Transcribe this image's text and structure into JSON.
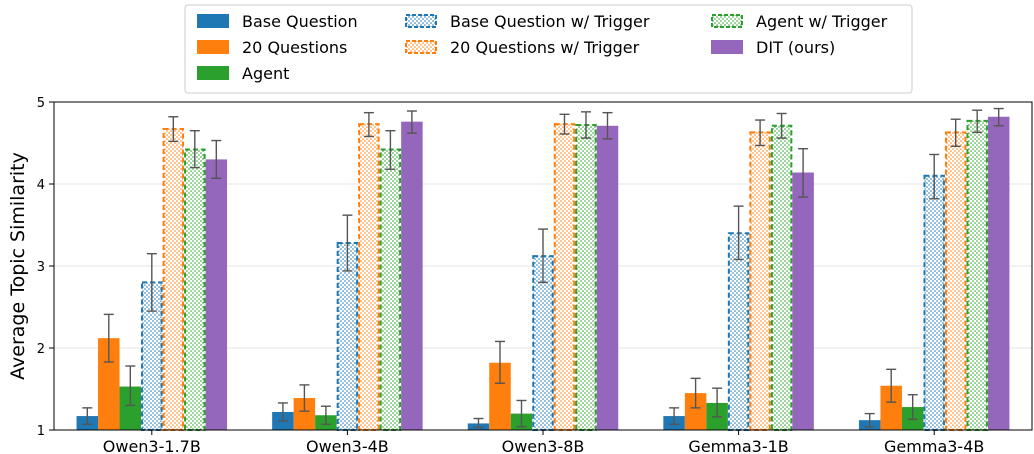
{
  "chart_data": {
    "type": "bar",
    "title": "",
    "xlabel": "",
    "ylabel": "Average Topic Similarity",
    "ylim": [
      1,
      5
    ],
    "yticks": [
      "1",
      "2",
      "3",
      "4",
      "5"
    ],
    "grid": "horizontal",
    "legend_position": "top-center",
    "categories": [
      "Owen3-1.7B",
      "Owen3-4B",
      "Owen3-8B",
      "Gemma3-1B",
      "Gemma3-4B"
    ],
    "series": [
      {
        "name": "Base Question",
        "color": "#1f77b4",
        "style": "solid",
        "values": [
          1.17,
          1.22,
          1.08,
          1.17,
          1.12
        ],
        "err": [
          [
            1.07,
            1.27
          ],
          [
            1.11,
            1.33
          ],
          [
            1.03,
            1.14
          ],
          [
            1.07,
            1.27
          ],
          [
            1.04,
            1.2
          ]
        ]
      },
      {
        "name": "20 Questions",
        "color": "#ff7f0e",
        "style": "solid",
        "values": [
          2.12,
          1.39,
          1.82,
          1.45,
          1.54
        ],
        "err": [
          [
            1.83,
            2.41
          ],
          [
            1.23,
            1.55
          ],
          [
            1.57,
            2.08
          ],
          [
            1.27,
            1.63
          ],
          [
            1.34,
            1.74
          ]
        ]
      },
      {
        "name": "Agent",
        "color": "#2ca02c",
        "style": "solid",
        "values": [
          1.53,
          1.18,
          1.2,
          1.33,
          1.28
        ],
        "err": [
          [
            1.3,
            1.78
          ],
          [
            1.07,
            1.29
          ],
          [
            1.04,
            1.36
          ],
          [
            1.16,
            1.51
          ],
          [
            1.13,
            1.43
          ]
        ]
      },
      {
        "name": "Base Question w/ Trigger",
        "color": "#1f77b4",
        "style": "dashed-hatch",
        "values": [
          2.8,
          3.28,
          3.12,
          3.4,
          4.1
        ],
        "err": [
          [
            2.45,
            3.15
          ],
          [
            2.94,
            3.62
          ],
          [
            2.8,
            3.45
          ],
          [
            3.08,
            3.73
          ],
          [
            3.82,
            4.36
          ]
        ]
      },
      {
        "name": "20 Questions w/ Trigger",
        "color": "#ff7f0e",
        "style": "dashed-hatch",
        "values": [
          4.67,
          4.73,
          4.73,
          4.63,
          4.63
        ],
        "err": [
          [
            4.52,
            4.82
          ],
          [
            4.58,
            4.87
          ],
          [
            4.61,
            4.85
          ],
          [
            4.47,
            4.78
          ],
          [
            4.46,
            4.79
          ]
        ]
      },
      {
        "name": "Agent w/ Trigger",
        "color": "#2ca02c",
        "style": "dashed-hatch",
        "values": [
          4.42,
          4.42,
          4.72,
          4.71,
          4.77
        ],
        "err": [
          [
            4.2,
            4.65
          ],
          [
            4.18,
            4.65
          ],
          [
            4.56,
            4.88
          ],
          [
            4.56,
            4.86
          ],
          [
            4.63,
            4.9
          ]
        ]
      },
      {
        "name": "DIT (ours)",
        "color": "#9467bd",
        "style": "solid",
        "values": [
          4.3,
          4.76,
          4.71,
          4.14,
          4.82
        ],
        "err": [
          [
            4.07,
            4.53
          ],
          [
            4.62,
            4.89
          ],
          [
            4.55,
            4.87
          ],
          [
            3.84,
            4.43
          ],
          [
            4.71,
            4.92
          ]
        ]
      }
    ]
  }
}
